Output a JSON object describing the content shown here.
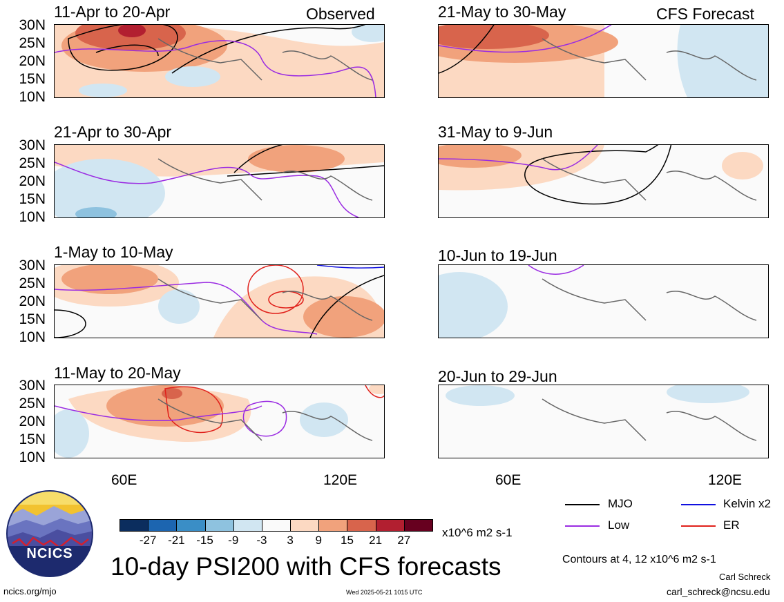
{
  "header": {
    "observed": "Observed",
    "forecast": "CFS Forecast"
  },
  "lat_labels": [
    "30N",
    "25N",
    "20N",
    "15N",
    "10N"
  ],
  "lon_labels": [
    "60E",
    "120E"
  ],
  "panels": {
    "obs": [
      "11-Apr to 20-Apr",
      "21-Apr to 30-Apr",
      "1-May to 10-May",
      "11-May to 20-May"
    ],
    "fcst": [
      "21-May to 30-May",
      "31-May to 9-Jun",
      "10-Jun to 19-Jun",
      "20-Jun to 29-Jun"
    ]
  },
  "colorbar": {
    "colors": [
      "#0b2d5e",
      "#1c65b0",
      "#3a8ec6",
      "#8ec2df",
      "#d1e6f2",
      "#fafafa",
      "#fcd9c2",
      "#f1a27c",
      "#d8644c",
      "#b21f30",
      "#67001f"
    ],
    "ticks": [
      "-27",
      "-21",
      "-15",
      "-9",
      "-3",
      "3",
      "9",
      "15",
      "21",
      "27"
    ],
    "unit": "x10^6 m2 s-1"
  },
  "legend": {
    "items": [
      {
        "label": "MJO",
        "color": "#000000"
      },
      {
        "label": "Kelvin x2",
        "color": "#1010e0"
      },
      {
        "label": "Low",
        "color": "#9a2be2"
      },
      {
        "label": "ER",
        "color": "#e0201a"
      }
    ],
    "contours": "Contours at 4, 12 x10^6 m2 s-1"
  },
  "footer": {
    "logo": "NCICS",
    "main_title": "10-day PSI200 with CFS forecasts",
    "url": "ncics.org/mjo",
    "timestamp": "Wed 2025-05-21 1015 UTC",
    "author": "Carl Schreck",
    "email": "carl_schreck@ncsu.edu"
  }
}
